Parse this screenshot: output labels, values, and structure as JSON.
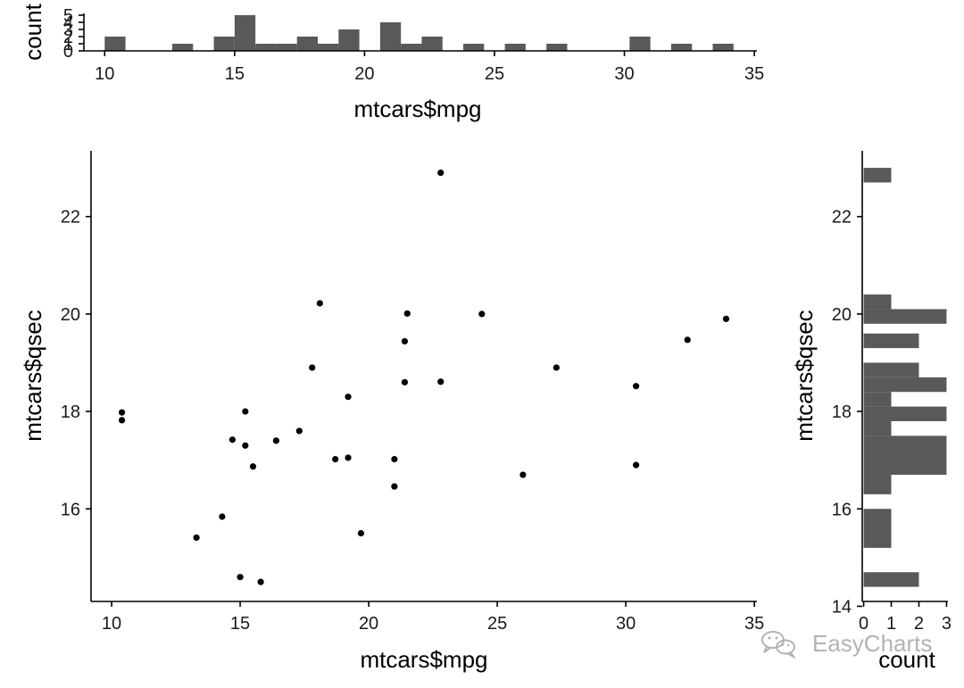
{
  "watermark": {
    "text": "EasyCharts",
    "icon": "wechat-logo-icon"
  },
  "colors": {
    "bar": "#595959",
    "point": "#000000",
    "axis": "#000000",
    "watermark": "#b3b3b3"
  },
  "chart_data": [
    {
      "id": "scatter",
      "type": "scatter",
      "xlabel": "mtcars$mpg",
      "ylabel": "mtcars$qsec",
      "xlim": [
        9.2,
        35.1
      ],
      "ylim": [
        14.1,
        23.35
      ],
      "xticks": [
        10,
        15,
        20,
        25,
        30,
        35
      ],
      "yticks": [
        16,
        18,
        20,
        22
      ],
      "grid": false,
      "points": [
        {
          "x": 21.0,
          "y": 16.46
        },
        {
          "x": 21.0,
          "y": 17.02
        },
        {
          "x": 22.8,
          "y": 18.61
        },
        {
          "x": 21.4,
          "y": 19.44
        },
        {
          "x": 18.7,
          "y": 17.02
        },
        {
          "x": 18.1,
          "y": 20.22
        },
        {
          "x": 14.3,
          "y": 15.84
        },
        {
          "x": 24.4,
          "y": 20.0
        },
        {
          "x": 22.8,
          "y": 22.9
        },
        {
          "x": 19.2,
          "y": 18.3
        },
        {
          "x": 17.8,
          "y": 18.9
        },
        {
          "x": 16.4,
          "y": 17.4
        },
        {
          "x": 17.3,
          "y": 17.6
        },
        {
          "x": 15.2,
          "y": 18.0
        },
        {
          "x": 10.4,
          "y": 17.98
        },
        {
          "x": 10.4,
          "y": 17.82
        },
        {
          "x": 14.7,
          "y": 17.42
        },
        {
          "x": 32.4,
          "y": 19.47
        },
        {
          "x": 30.4,
          "y": 18.52
        },
        {
          "x": 33.9,
          "y": 19.9
        },
        {
          "x": 21.5,
          "y": 20.01
        },
        {
          "x": 15.5,
          "y": 16.87
        },
        {
          "x": 15.2,
          "y": 17.3
        },
        {
          "x": 13.3,
          "y": 15.41
        },
        {
          "x": 19.2,
          "y": 17.05
        },
        {
          "x": 27.3,
          "y": 18.9
        },
        {
          "x": 26.0,
          "y": 16.7
        },
        {
          "x": 30.4,
          "y": 16.9
        },
        {
          "x": 15.8,
          "y": 14.5
        },
        {
          "x": 19.7,
          "y": 15.5
        },
        {
          "x": 15.0,
          "y": 14.6
        },
        {
          "x": 21.4,
          "y": 18.6
        }
      ]
    },
    {
      "id": "top-histogram",
      "type": "bar",
      "xlabel": "mtcars$mpg",
      "ylabel": "count",
      "xlim": [
        9.2,
        35.1
      ],
      "ylim": [
        0,
        5
      ],
      "xticks": [
        10,
        15,
        20,
        25,
        30,
        35
      ],
      "yticks": [
        0,
        1,
        2,
        3,
        4,
        5
      ],
      "bins": [
        {
          "x0": 10.0,
          "x1": 10.8,
          "count": 2
        },
        {
          "x0": 12.6,
          "x1": 13.4,
          "count": 1
        },
        {
          "x0": 14.2,
          "x1": 15.0,
          "count": 2
        },
        {
          "x0": 15.0,
          "x1": 15.8,
          "count": 5
        },
        {
          "x0": 15.8,
          "x1": 16.6,
          "count": 1
        },
        {
          "x0": 16.6,
          "x1": 17.4,
          "count": 1
        },
        {
          "x0": 17.4,
          "x1": 18.2,
          "count": 2
        },
        {
          "x0": 18.2,
          "x1": 19.0,
          "count": 1
        },
        {
          "x0": 19.0,
          "x1": 19.8,
          "count": 3
        },
        {
          "x0": 20.6,
          "x1": 21.4,
          "count": 4
        },
        {
          "x0": 21.4,
          "x1": 22.2,
          "count": 1
        },
        {
          "x0": 22.2,
          "x1": 23.0,
          "count": 2
        },
        {
          "x0": 23.8,
          "x1": 24.6,
          "count": 1
        },
        {
          "x0": 25.4,
          "x1": 26.2,
          "count": 1
        },
        {
          "x0": 27.0,
          "x1": 27.8,
          "count": 1
        },
        {
          "x0": 30.2,
          "x1": 31.0,
          "count": 2
        },
        {
          "x0": 31.8,
          "x1": 32.6,
          "count": 1
        },
        {
          "x0": 33.4,
          "x1": 34.2,
          "count": 1
        }
      ]
    },
    {
      "id": "right-histogram",
      "type": "bar",
      "orientation": "horizontal",
      "xlabel": "count",
      "ylabel": "mtcars$qsec",
      "xlim": [
        -0.05,
        3.05
      ],
      "ylim": [
        14.1,
        23.35
      ],
      "xticks": [
        0,
        1,
        2,
        3
      ],
      "yticks": [
        14,
        16,
        18,
        20,
        22
      ],
      "bins": [
        {
          "y0": 14.4,
          "y1": 14.7,
          "count": 2
        },
        {
          "y0": 15.2,
          "y1": 16.0,
          "count": 1
        },
        {
          "y0": 16.3,
          "y1": 16.7,
          "count": 1
        },
        {
          "y0": 16.7,
          "y1": 17.5,
          "count": 3
        },
        {
          "y0": 17.5,
          "y1": 17.8,
          "count": 1
        },
        {
          "y0": 17.8,
          "y1": 18.1,
          "count": 3
        },
        {
          "y0": 18.1,
          "y1": 18.4,
          "count": 1
        },
        {
          "y0": 18.4,
          "y1": 18.7,
          "count": 3
        },
        {
          "y0": 18.7,
          "y1": 19.0,
          "count": 2
        },
        {
          "y0": 19.3,
          "y1": 19.6,
          "count": 2
        },
        {
          "y0": 19.8,
          "y1": 20.1,
          "count": 3
        },
        {
          "y0": 20.1,
          "y1": 20.4,
          "count": 1
        },
        {
          "y0": 22.7,
          "y1": 23.0,
          "count": 1
        }
      ]
    }
  ]
}
